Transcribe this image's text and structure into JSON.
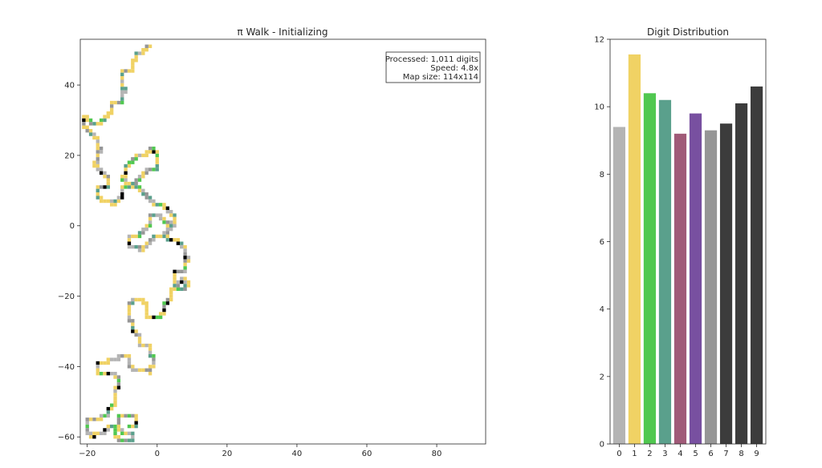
{
  "chart_data": [
    {
      "type": "scatter",
      "title": "π Walk - Initializing",
      "xlabel": "",
      "ylabel": "",
      "xlim": [
        -22,
        94
      ],
      "ylim": [
        -62,
        53
      ],
      "xticks": [
        -20,
        0,
        20,
        40,
        60,
        80
      ],
      "yticks": [
        -60,
        -40,
        -20,
        0,
        20,
        40
      ],
      "info_lines": [
        "Processed: 1,011 digits",
        "Speed: 4.8x",
        "Map size: 114x114"
      ],
      "digit_colors": [
        "#b4b4b4",
        "#f0d264",
        "#50c850",
        "#5aa08c",
        "#a05a78",
        "#7850a0",
        "#969696",
        "#3c3c3c",
        "#2a2a2a",
        "#000000"
      ],
      "visit_dark_color": "#1a0b24",
      "walk_path": [
        [
          -2,
          51
        ],
        [
          -4,
          50
        ],
        [
          -6,
          49
        ],
        [
          -6,
          47
        ],
        [
          -7,
          45
        ],
        [
          -9,
          44
        ],
        [
          -10,
          42
        ],
        [
          -10,
          40
        ],
        [
          -9,
          38
        ],
        [
          -10,
          36
        ],
        [
          -12,
          35
        ],
        [
          -13,
          33
        ],
        [
          -14,
          31
        ],
        [
          -16,
          30
        ],
        [
          -18,
          29
        ],
        [
          -20,
          31
        ],
        [
          -21,
          29
        ],
        [
          -19,
          27
        ],
        [
          -18,
          25
        ],
        [
          -17,
          23
        ],
        [
          -16,
          21
        ],
        [
          -17,
          19
        ],
        [
          -18,
          17
        ],
        [
          -16,
          16
        ],
        [
          -15,
          14
        ],
        [
          -14,
          12
        ],
        [
          -16,
          11
        ],
        [
          -17,
          9
        ],
        [
          -16,
          8
        ],
        [
          -14,
          7
        ],
        [
          -12,
          6
        ],
        [
          -11,
          8
        ],
        [
          -10,
          10
        ],
        [
          -8,
          11
        ],
        [
          -6,
          12
        ],
        [
          -5,
          14
        ],
        [
          -3,
          15
        ],
        [
          -1,
          16
        ],
        [
          0,
          18
        ],
        [
          0,
          20
        ],
        [
          -1,
          22
        ],
        [
          -3,
          21
        ],
        [
          -5,
          20
        ],
        [
          -7,
          19
        ],
        [
          -8,
          17
        ],
        [
          -9,
          15
        ],
        [
          -10,
          13
        ],
        [
          -8,
          12
        ],
        [
          -6,
          11
        ],
        [
          -4,
          10
        ],
        [
          -3,
          8
        ],
        [
          -1,
          7
        ],
        [
          1,
          6
        ],
        [
          3,
          5
        ],
        [
          4,
          3
        ],
        [
          5,
          1
        ],
        [
          4,
          -1
        ],
        [
          2,
          -2
        ],
        [
          0,
          -3
        ],
        [
          -2,
          -4
        ],
        [
          -3,
          -6
        ],
        [
          -5,
          -7
        ],
        [
          -7,
          -6
        ],
        [
          -8,
          -4
        ],
        [
          -6,
          -3
        ],
        [
          -4,
          -2
        ],
        [
          -3,
          0
        ],
        [
          -2,
          2
        ],
        [
          0,
          3
        ],
        [
          2,
          2
        ],
        [
          4,
          1
        ],
        [
          3,
          -1
        ],
        [
          3,
          -3
        ],
        [
          4,
          -4
        ],
        [
          6,
          -4
        ],
        [
          7,
          -6
        ],
        [
          8,
          -8
        ],
        [
          9,
          -10
        ],
        [
          8,
          -12
        ],
        [
          6,
          -13
        ],
        [
          5,
          -15
        ],
        [
          5,
          -17
        ],
        [
          7,
          -18
        ],
        [
          9,
          -17
        ],
        [
          8,
          -15
        ],
        [
          7,
          -16
        ],
        [
          5,
          -18
        ],
        [
          4,
          -20
        ],
        [
          3,
          -22
        ],
        [
          2,
          -24
        ],
        [
          1,
          -26
        ],
        [
          -1,
          -26
        ],
        [
          -3,
          -26
        ],
        [
          -3,
          -24
        ],
        [
          -3,
          -22
        ],
        [
          -5,
          -21
        ],
        [
          -7,
          -21
        ],
        [
          -8,
          -23
        ],
        [
          -8,
          -25
        ],
        [
          -8,
          -27
        ],
        [
          -7,
          -29
        ],
        [
          -6,
          -31
        ],
        [
          -5,
          -33
        ],
        [
          -3,
          -34
        ],
        [
          -2,
          -36
        ],
        [
          -1,
          -38
        ],
        [
          -1,
          -40
        ],
        [
          -2,
          -42
        ],
        [
          -4,
          -41
        ],
        [
          -6,
          -41
        ],
        [
          -8,
          -40
        ],
        [
          -8,
          -38
        ],
        [
          -10,
          -37
        ],
        [
          -12,
          -38
        ],
        [
          -14,
          -38
        ],
        [
          -16,
          -39
        ],
        [
          -17,
          -41
        ],
        [
          -15,
          -42
        ],
        [
          -13,
          -42
        ],
        [
          -11,
          -44
        ],
        [
          -11,
          -46
        ],
        [
          -12,
          -48
        ],
        [
          -12,
          -50
        ],
        [
          -13,
          -52
        ],
        [
          -14,
          -54
        ],
        [
          -16,
          -54
        ],
        [
          -18,
          -55
        ],
        [
          -20,
          -55
        ],
        [
          -20,
          -57
        ],
        [
          -20,
          -59
        ],
        [
          -18,
          -60
        ],
        [
          -16,
          -59
        ],
        [
          -14,
          -58
        ],
        [
          -12,
          -57
        ],
        [
          -10,
          -58
        ],
        [
          -8,
          -59
        ],
        [
          -7,
          -61
        ],
        [
          -9,
          -61
        ],
        [
          -11,
          -61
        ],
        [
          -12,
          -59
        ],
        [
          -12,
          -57
        ],
        [
          -11,
          -55
        ],
        [
          -9,
          -54
        ],
        [
          -7,
          -54
        ],
        [
          -6,
          -56
        ],
        [
          -8,
          -57
        ]
      ]
    },
    {
      "type": "bar",
      "title": "Digit Distribution",
      "xlabel": "",
      "ylabel": "",
      "categories": [
        "0",
        "1",
        "2",
        "3",
        "4",
        "5",
        "6",
        "7",
        "8",
        "9"
      ],
      "values": [
        9.4,
        11.55,
        10.4,
        10.2,
        9.2,
        9.8,
        9.3,
        9.5,
        10.1,
        10.6
      ],
      "ylim": [
        0,
        12.0
      ],
      "yticks": [
        0,
        2,
        4,
        6,
        8,
        10,
        12
      ],
      "colors": [
        "#b4b4b4",
        "#f0d264",
        "#50c850",
        "#5aa08c",
        "#a05a78",
        "#7850a0",
        "#969696",
        "#3c3c3c",
        "#3c3c3c",
        "#3c3c3c"
      ]
    }
  ]
}
